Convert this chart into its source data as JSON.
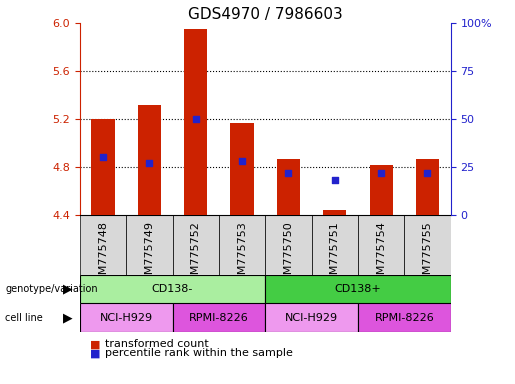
{
  "title": "GDS4970 / 7986603",
  "samples": [
    "GSM775748",
    "GSM775749",
    "GSM775752",
    "GSM775753",
    "GSM775750",
    "GSM775751",
    "GSM775754",
    "GSM775755"
  ],
  "bar_values": [
    5.2,
    5.32,
    5.95,
    5.17,
    4.87,
    4.44,
    4.82,
    4.87
  ],
  "percentile_values": [
    30,
    27,
    50,
    28,
    22,
    18,
    22,
    22
  ],
  "ylim": [
    4.4,
    6.0
  ],
  "yticks": [
    4.4,
    4.8,
    5.2,
    5.6,
    6.0
  ],
  "y2lim": [
    0,
    100
  ],
  "y2ticks": [
    0,
    25,
    50,
    75,
    100
  ],
  "bar_color": "#cc2200",
  "percentile_color": "#2222cc",
  "bar_width": 0.5,
  "genotype_row": {
    "label": "genotype/variation",
    "groups": [
      {
        "name": "CD138-",
        "span": [
          0,
          3
        ],
        "color": "#aaeea0"
      },
      {
        "name": "CD138+",
        "span": [
          4,
          7
        ],
        "color": "#44cc44"
      }
    ]
  },
  "cellline_row": {
    "label": "cell line",
    "groups": [
      {
        "name": "NCI-H929",
        "span": [
          0,
          1
        ],
        "color": "#ee99ee"
      },
      {
        "name": "RPMI-8226",
        "span": [
          2,
          3
        ],
        "color": "#dd55dd"
      },
      {
        "name": "NCI-H929",
        "span": [
          4,
          5
        ],
        "color": "#ee99ee"
      },
      {
        "name": "RPMI-8226",
        "span": [
          6,
          7
        ],
        "color": "#dd55dd"
      }
    ]
  },
  "title_fontsize": 11,
  "tick_fontsize": 8,
  "annotation_fontsize": 8,
  "legend_fontsize": 8
}
